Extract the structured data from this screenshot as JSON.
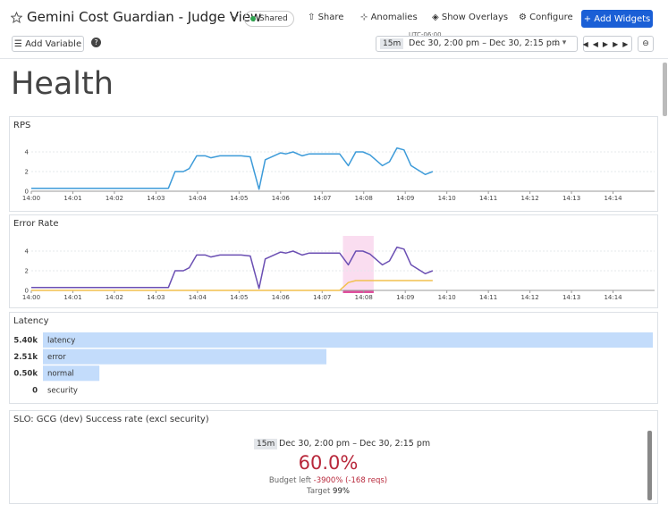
{
  "header": {
    "title": "Gemini Cost Guardian - Judge View",
    "badge": "Shared",
    "actions": [
      "Share",
      "Anomalies",
      "Show Overlays",
      "Configure"
    ],
    "primary_action": "Add Widgets"
  },
  "toolbar": {
    "add_variable": "Add Variable",
    "timezone": "UTC-06:00",
    "range_short": "15m",
    "range": "Dec 30, 2:00 pm – Dec 30, 2:15 pm"
  },
  "section_title": "Health",
  "chart_data": [
    {
      "type": "line",
      "title": "RPS",
      "x": [
        0,
        3.3,
        3.46,
        3.66,
        3.8,
        3.98,
        4.19,
        4.32,
        4.54,
        5.05,
        5.27,
        5.48,
        5.63,
        6.0,
        6.13,
        6.3,
        6.52,
        6.69,
        6.99,
        7.42,
        7.63,
        7.81,
        7.98,
        8.15,
        8.45,
        8.62,
        8.8,
        8.97,
        9.14,
        9.48,
        9.66
      ],
      "series": [
        {
          "color": "#3d9bd9",
          "values": [
            0.3,
            0.3,
            2.0,
            2.0,
            2.3,
            3.6,
            3.6,
            3.4,
            3.6,
            3.6,
            3.5,
            0.2,
            3.2,
            3.9,
            3.8,
            4.0,
            3.6,
            3.8,
            3.8,
            3.8,
            2.6,
            4.0,
            4.0,
            3.7,
            2.6,
            3.0,
            4.4,
            4.2,
            2.6,
            1.7,
            2.0
          ]
        }
      ],
      "xlim": [
        0,
        15
      ],
      "xticks": [
        {
          "value": 0,
          "label": "14:00"
        },
        {
          "value": 1,
          "label": "14:01"
        },
        {
          "value": 2,
          "label": "14:02"
        },
        {
          "value": 3,
          "label": "14:03"
        },
        {
          "value": 4,
          "label": "14:04"
        },
        {
          "value": 5,
          "label": "14:05"
        },
        {
          "value": 6,
          "label": "14:06"
        },
        {
          "value": 7,
          "label": "14:07"
        },
        {
          "value": 8,
          "label": "14:08"
        },
        {
          "value": 9,
          "label": "14:09"
        },
        {
          "value": 10,
          "label": "14:10"
        },
        {
          "value": 11,
          "label": "14:11"
        },
        {
          "value": 12,
          "label": "14:12"
        },
        {
          "value": 13,
          "label": "14:13"
        },
        {
          "value": 14,
          "label": "14:14"
        }
      ],
      "ylim": [
        0,
        5
      ],
      "yticks": [
        0,
        2,
        4
      ],
      "grid": true
    },
    {
      "type": "line",
      "title": "Error Rate",
      "x": [
        0,
        3.3,
        3.46,
        3.66,
        3.8,
        3.98,
        4.19,
        4.32,
        4.54,
        5.05,
        5.27,
        5.48,
        5.63,
        6.0,
        6.13,
        6.3,
        6.52,
        6.69,
        6.99,
        7.42,
        7.63,
        7.81,
        7.98,
        8.15,
        8.45,
        8.62,
        8.8,
        8.97,
        9.14,
        9.48,
        9.66
      ],
      "series": [
        {
          "color": "#6b4fb3",
          "values": [
            0.3,
            0.3,
            2.0,
            2.0,
            2.3,
            3.6,
            3.6,
            3.4,
            3.6,
            3.6,
            3.5,
            0.2,
            3.2,
            3.9,
            3.8,
            4.0,
            3.6,
            3.8,
            3.8,
            3.8,
            2.6,
            4.0,
            4.0,
            3.7,
            2.6,
            3.0,
            4.4,
            4.2,
            2.6,
            1.7,
            2.0
          ]
        },
        {
          "color": "#f2c14e",
          "values": [
            0,
            0,
            0,
            0,
            0,
            0,
            0,
            0,
            0,
            0,
            0,
            0,
            0,
            0,
            0,
            0,
            0,
            0,
            0,
            0,
            0.8,
            1.0,
            1.0,
            1.0,
            1.0,
            1.0,
            1.0,
            1.0,
            1.0,
            1.0,
            1.0
          ]
        }
      ],
      "highlight": {
        "xlim": [
          7.5,
          8.24
        ],
        "color": "#f9d4ec",
        "bar_color": "#e0509e"
      },
      "xlim": [
        0,
        15
      ],
      "xticks": [
        {
          "value": 0,
          "label": "14:00"
        },
        {
          "value": 1,
          "label": "14:01"
        },
        {
          "value": 2,
          "label": "14:02"
        },
        {
          "value": 3,
          "label": "14:03"
        },
        {
          "value": 4,
          "label": "14:04"
        },
        {
          "value": 5,
          "label": "14:05"
        },
        {
          "value": 6,
          "label": "14:06"
        },
        {
          "value": 7,
          "label": "14:07"
        },
        {
          "value": 8,
          "label": "14:08"
        },
        {
          "value": 9,
          "label": "14:09"
        },
        {
          "value": 10,
          "label": "14:10"
        },
        {
          "value": 11,
          "label": "14:11"
        },
        {
          "value": 12,
          "label": "14:12"
        },
        {
          "value": 13,
          "label": "14:13"
        },
        {
          "value": 14,
          "label": "14:14"
        }
      ],
      "ylim": [
        0,
        5
      ],
      "yticks": [
        0,
        2,
        4
      ],
      "grid": true
    },
    {
      "type": "bar",
      "orientation": "horizontal",
      "title": "Latency",
      "categories": [
        "latency",
        "error",
        "normal",
        "security"
      ],
      "values": [
        5400,
        2510,
        500,
        0
      ],
      "value_labels": [
        "5.40k",
        "2.51k",
        "0.50k",
        "0"
      ],
      "color": "#c3dcfb",
      "xlim": [
        0,
        5400
      ]
    }
  ],
  "slo": {
    "title": "SLO: GCG (dev) Success rate (excl security)",
    "range_short": "15m",
    "range": "Dec 30, 2:00 pm – Dec 30, 2:15 pm",
    "value": "60.0%",
    "budget_label": "Budget left",
    "budget_value": "-3900% (-168 reqs)",
    "target_label": "Target",
    "target_value": "99%"
  }
}
